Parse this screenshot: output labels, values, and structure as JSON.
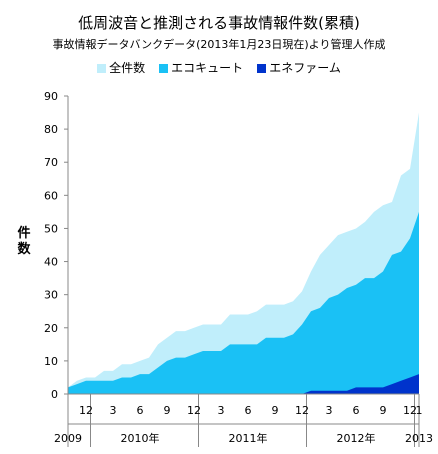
{
  "chart_data": {
    "type": "area",
    "title": "低周波音と推測される事故情報件数(累積)",
    "subtitle": "事故情報データバンクデータ(2013年1月23日現在)より管理人作成",
    "xlabel": "",
    "ylabel": "件数",
    "ylim": [
      0,
      90
    ],
    "yticks": [
      0,
      10,
      20,
      30,
      40,
      50,
      60,
      70,
      80,
      90
    ],
    "grid": false,
    "legend_position": "top",
    "x_start": "2009-10",
    "x_end": "2013-01",
    "month_ticks": [
      {
        "month": "2009-12",
        "label": "12"
      },
      {
        "month": "2010-03",
        "label": "3"
      },
      {
        "month": "2010-06",
        "label": "6"
      },
      {
        "month": "2010-09",
        "label": "9"
      },
      {
        "month": "2010-12",
        "label": "12"
      },
      {
        "month": "2011-03",
        "label": "3"
      },
      {
        "month": "2011-06",
        "label": "6"
      },
      {
        "month": "2011-09",
        "label": "9"
      },
      {
        "month": "2011-12",
        "label": "12"
      },
      {
        "month": "2012-03",
        "label": "3"
      },
      {
        "month": "2012-06",
        "label": "6"
      },
      {
        "month": "2012-09",
        "label": "9"
      },
      {
        "month": "2012-12",
        "label": "12"
      },
      {
        "month": "2013-01",
        "label": "1"
      }
    ],
    "year_labels": [
      {
        "month": "2009-10",
        "label": "2009"
      },
      {
        "month": "2010-06",
        "label": "2010年"
      },
      {
        "month": "2011-06",
        "label": "2011年"
      },
      {
        "month": "2012-06",
        "label": "2012年"
      },
      {
        "month": "2013-01",
        "label": "2013"
      }
    ],
    "year_separators": [
      "2009-12",
      "2010-12",
      "2011-12",
      "2012-12"
    ],
    "series": [
      {
        "name": "全件数",
        "color": "#c0eefb",
        "points": [
          [
            "2009-10",
            2
          ],
          [
            "2009-11",
            4
          ],
          [
            "2009-12",
            5
          ],
          [
            "2010-01",
            5
          ],
          [
            "2010-02",
            7
          ],
          [
            "2010-03",
            7
          ],
          [
            "2010-04",
            9
          ],
          [
            "2010-05",
            9
          ],
          [
            "2010-06",
            10
          ],
          [
            "2010-07",
            11
          ],
          [
            "2010-08",
            15
          ],
          [
            "2010-09",
            17
          ],
          [
            "2010-10",
            19
          ],
          [
            "2010-11",
            19
          ],
          [
            "2010-12",
            20
          ],
          [
            "2011-01",
            21
          ],
          [
            "2011-02",
            21
          ],
          [
            "2011-03",
            21
          ],
          [
            "2011-04",
            24
          ],
          [
            "2011-05",
            24
          ],
          [
            "2011-06",
            24
          ],
          [
            "2011-07",
            25
          ],
          [
            "2011-08",
            27
          ],
          [
            "2011-09",
            27
          ],
          [
            "2011-10",
            27
          ],
          [
            "2011-11",
            28
          ],
          [
            "2011-12",
            31
          ],
          [
            "2012-01",
            37
          ],
          [
            "2012-02",
            42
          ],
          [
            "2012-03",
            45
          ],
          [
            "2012-04",
            48
          ],
          [
            "2012-05",
            49
          ],
          [
            "2012-06",
            50
          ],
          [
            "2012-07",
            52
          ],
          [
            "2012-08",
            55
          ],
          [
            "2012-09",
            57
          ],
          [
            "2012-10",
            58
          ],
          [
            "2012-11",
            66
          ],
          [
            "2012-12",
            68
          ],
          [
            "2013-01",
            85
          ]
        ]
      },
      {
        "name": "エコキュート",
        "color": "#1ac1f5",
        "points": [
          [
            "2009-10",
            2
          ],
          [
            "2009-11",
            3
          ],
          [
            "2009-12",
            4
          ],
          [
            "2010-01",
            4
          ],
          [
            "2010-02",
            4
          ],
          [
            "2010-03",
            4
          ],
          [
            "2010-04",
            5
          ],
          [
            "2010-05",
            5
          ],
          [
            "2010-06",
            6
          ],
          [
            "2010-07",
            6
          ],
          [
            "2010-08",
            8
          ],
          [
            "2010-09",
            10
          ],
          [
            "2010-10",
            11
          ],
          [
            "2010-11",
            11
          ],
          [
            "2010-12",
            12
          ],
          [
            "2011-01",
            13
          ],
          [
            "2011-02",
            13
          ],
          [
            "2011-03",
            13
          ],
          [
            "2011-04",
            15
          ],
          [
            "2011-05",
            15
          ],
          [
            "2011-06",
            15
          ],
          [
            "2011-07",
            15
          ],
          [
            "2011-08",
            17
          ],
          [
            "2011-09",
            17
          ],
          [
            "2011-10",
            17
          ],
          [
            "2011-11",
            18
          ],
          [
            "2011-12",
            21
          ],
          [
            "2012-01",
            25
          ],
          [
            "2012-02",
            26
          ],
          [
            "2012-03",
            29
          ],
          [
            "2012-04",
            30
          ],
          [
            "2012-05",
            32
          ],
          [
            "2012-06",
            33
          ],
          [
            "2012-07",
            35
          ],
          [
            "2012-08",
            35
          ],
          [
            "2012-09",
            37
          ],
          [
            "2012-10",
            42
          ],
          [
            "2012-11",
            43
          ],
          [
            "2012-12",
            47
          ],
          [
            "2013-01",
            55
          ]
        ]
      },
      {
        "name": "エネファーム",
        "color": "#0033cc",
        "points": [
          [
            "2009-10",
            0
          ],
          [
            "2011-12",
            0
          ],
          [
            "2012-01",
            1
          ],
          [
            "2012-02",
            1
          ],
          [
            "2012-03",
            1
          ],
          [
            "2012-04",
            1
          ],
          [
            "2012-05",
            1
          ],
          [
            "2012-06",
            2
          ],
          [
            "2012-07",
            2
          ],
          [
            "2012-08",
            2
          ],
          [
            "2012-09",
            2
          ],
          [
            "2012-10",
            3
          ],
          [
            "2012-11",
            4
          ],
          [
            "2012-12",
            5
          ],
          [
            "2013-01",
            6
          ]
        ]
      }
    ]
  }
}
